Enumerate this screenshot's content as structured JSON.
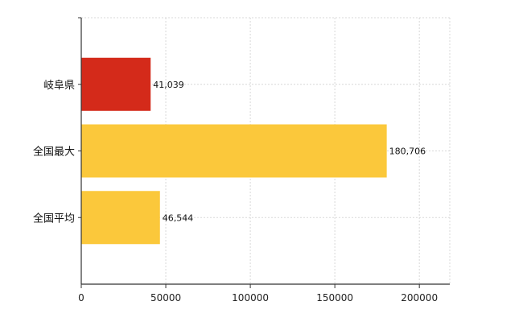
{
  "colors": {
    "highlight": "#d42a1a",
    "default": "#fbc83b",
    "grid": "#d8d8d8",
    "axis": "#333333"
  },
  "chart_data": {
    "type": "bar",
    "orientation": "horizontal",
    "categories": [
      "岐阜県",
      "全国最大",
      "全国平均"
    ],
    "values": [
      41039,
      180706,
      46544
    ],
    "value_labels": [
      "41,039",
      "180,706",
      "46,544"
    ],
    "bar_colors": [
      "#d42a1a",
      "#fbc83b",
      "#fbc83b"
    ],
    "xlim": [
      0,
      218000
    ],
    "xticks": [
      0,
      50000,
      100000,
      150000,
      200000
    ],
    "xtick_labels": [
      "0",
      "50000",
      "100000",
      "150000",
      "200000"
    ],
    "grid": true,
    "legend": "none",
    "title": "",
    "xlabel": "",
    "ylabel": ""
  }
}
